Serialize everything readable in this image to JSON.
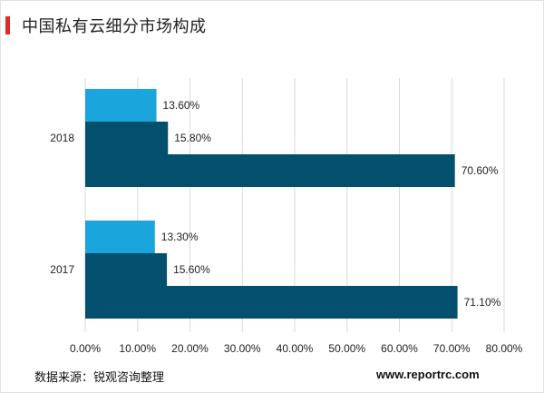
{
  "title": "中国私有云细分市场构成",
  "footer": {
    "source": "数据来源：锐观咨询整理",
    "site": "www.reportrc.com"
  },
  "colors": {
    "dark_bar": "#02506e",
    "light_bar": "#1aa6dd",
    "accent": "#e02a2a",
    "grid": "#d9d9d9"
  },
  "chart_data": {
    "type": "bar",
    "orientation": "horizontal",
    "categories": [
      "2018",
      "2017"
    ],
    "series": [
      {
        "values": [
          13.6,
          13.3
        ],
        "labels": [
          "13.60%",
          "13.30%"
        ],
        "color": "#1aa6dd"
      },
      {
        "values": [
          15.8,
          15.6
        ],
        "labels": [
          "15.80%",
          "15.60%"
        ],
        "color": "#02506e"
      },
      {
        "values": [
          70.6,
          71.1
        ],
        "labels": [
          "70.60%",
          "71.10%"
        ],
        "color": "#02506e"
      }
    ],
    "xlim": [
      0,
      80
    ],
    "xticks": [
      "0.00%",
      "10.00%",
      "20.00%",
      "30.00%",
      "40.00%",
      "50.00%",
      "60.00%",
      "70.00%",
      "80.00%"
    ],
    "grid": true,
    "legend": false
  }
}
